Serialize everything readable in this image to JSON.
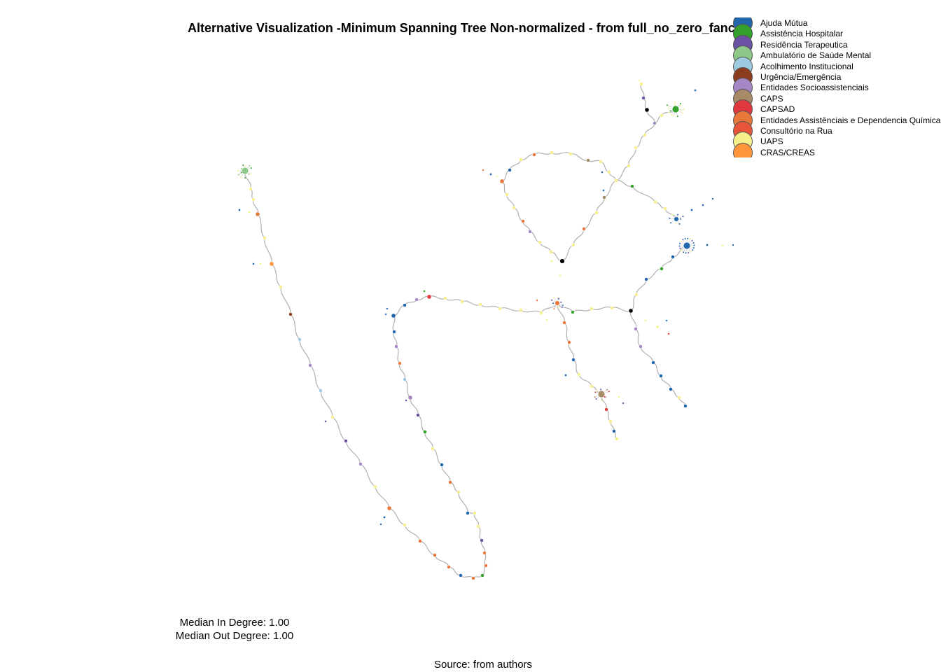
{
  "title": "Alternative Visualization -Minimum Spanning Tree Non-normalized - from full_no_zero_fancy",
  "legend": [
    {
      "label": "Ajuda Mútua",
      "color": "#2166ac"
    },
    {
      "label": "Assistência Hospitalar",
      "color": "#33a02c"
    },
    {
      "label": "Residência Terapeutica",
      "color": "#6a51a3"
    },
    {
      "label": "Ambulatório de Saúde Mental",
      "color": "#8fc98a"
    },
    {
      "label": "Acolhimento Institucional",
      "color": "#9ecae1"
    },
    {
      "label": "Urgência/Emergência",
      "color": "#8c3c1e"
    },
    {
      "label": "Entidades Socioassistenciais",
      "color": "#a487c4"
    },
    {
      "label": "CAPS",
      "color": "#a88b66"
    },
    {
      "label": "CAPSAD",
      "color": "#e0383e"
    },
    {
      "label": "Entidades Assistênciais e Dependencia Química",
      "color": "#e7783a"
    },
    {
      "label": "Consultório na Rua",
      "color": "#e6553a"
    },
    {
      "label": "UAPS",
      "color": "#f6f08a"
    },
    {
      "label": "CRAS/CREAS",
      "color": "#fd963a"
    }
  ],
  "stats": {
    "median_in": "Median In Degree: 1.00",
    "median_out": "Median Out Degree: 1.00"
  },
  "source": "Source: from authors"
}
